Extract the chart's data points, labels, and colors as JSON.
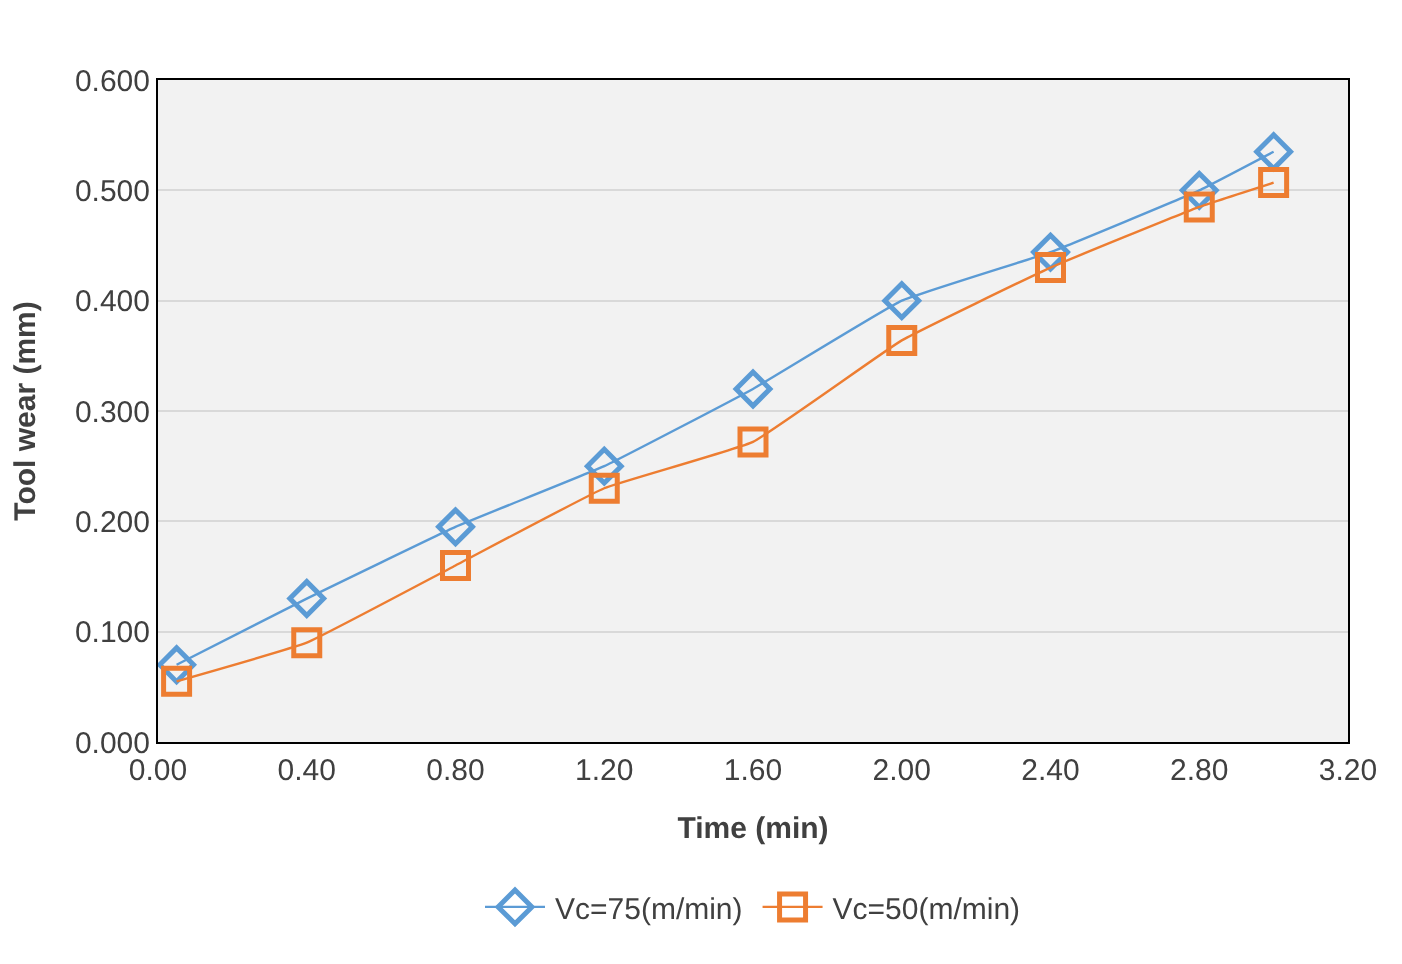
{
  "chart_data": {
    "type": "line",
    "xlabel": "Time (min)",
    "ylabel": "Tool wear (mm)",
    "xlim": [
      0,
      3.2
    ],
    "xticks": [
      {
        "value": 0,
        "label": "0.00"
      },
      {
        "value": 0.4,
        "label": "0.40"
      },
      {
        "value": 0.8,
        "label": "0.80"
      },
      {
        "value": 1.2,
        "label": "1.20"
      },
      {
        "value": 1.6,
        "label": "1.60"
      },
      {
        "value": 2,
        "label": "2.00"
      },
      {
        "value": 2.4,
        "label": "2.40"
      },
      {
        "value": 2.8,
        "label": "2.80"
      },
      {
        "value": 3.2,
        "label": "3.20"
      }
    ],
    "ylim": [
      0,
      0.6
    ],
    "yticks": [
      {
        "value": 0,
        "label": "0.000"
      },
      {
        "value": 0.1,
        "label": "0.100"
      },
      {
        "value": 0.2,
        "label": "0.200"
      },
      {
        "value": 0.3,
        "label": "0.300"
      },
      {
        "value": 0.4,
        "label": "0.400"
      },
      {
        "value": 0.5,
        "label": "0.500"
      },
      {
        "value": 0.6,
        "label": "0.600"
      }
    ],
    "x": [
      0.05,
      0.4,
      0.8,
      1.2,
      1.6,
      2.0,
      2.4,
      2.8,
      3.0
    ],
    "grid": "y",
    "legend": "bottom",
    "series": [
      {
        "name": "Vc=75(m/min)",
        "color": "#5b9bd5",
        "marker": "diamond",
        "values": [
          0.07,
          0.13,
          0.195,
          0.25,
          0.32,
          0.4,
          0.444,
          0.5,
          0.535
        ]
      },
      {
        "name": "Vc=50(m/min)",
        "color": "#ed7d31",
        "marker": "square",
        "values": [
          0.055,
          0.09,
          0.16,
          0.23,
          0.272,
          0.364,
          0.43,
          0.485,
          0.507
        ]
      }
    ]
  }
}
